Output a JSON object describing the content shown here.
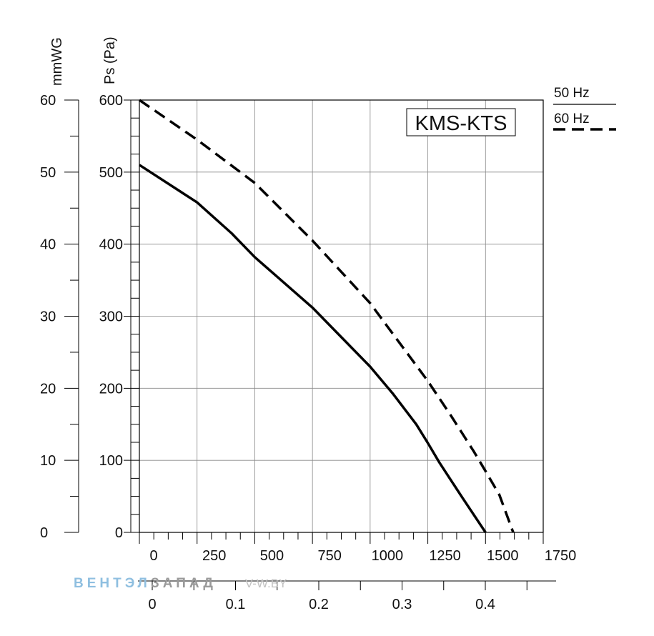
{
  "chart_data": {
    "type": "line",
    "title": "KMS-KTS",
    "y_primary": {
      "label": "Ps (Pa)",
      "ticks": [
        "0",
        "100",
        "200",
        "300",
        "400",
        "500",
        "600"
      ],
      "range": [
        0,
        600
      ]
    },
    "y_secondary": {
      "label": "mmWG",
      "ticks": [
        "0",
        "10",
        "20",
        "30",
        "40",
        "50",
        "60"
      ],
      "range": [
        0,
        60
      ]
    },
    "x_primary": {
      "label": "",
      "ticks": [
        "0",
        "250",
        "500",
        "750",
        "1000",
        "1250",
        "1500",
        "1750"
      ],
      "range": [
        0,
        1750
      ]
    },
    "x_secondary": {
      "label": "",
      "ticks": [
        "0",
        "0.1",
        "0.2",
        "0.3",
        "0.4"
      ],
      "range": [
        0,
        0.4
      ]
    },
    "grid": true,
    "legend_position": "top-right",
    "series": [
      {
        "name": "50 Hz",
        "style": "solid",
        "color": "#000000",
        "x": [
          0,
          250,
          400,
          500,
          750,
          1000,
          1100,
          1200,
          1250,
          1300,
          1400,
          1500
        ],
        "y": [
          510,
          458,
          415,
          382,
          312,
          230,
          192,
          150,
          124,
          97,
          48,
          0
        ]
      },
      {
        "name": "60 Hz",
        "style": "dashed",
        "color": "#000000",
        "x": [
          0,
          250,
          500,
          750,
          1000,
          1250,
          1350,
          1450,
          1500,
          1560,
          1620
        ],
        "y": [
          600,
          545,
          485,
          405,
          318,
          210,
          162,
          112,
          85,
          52,
          0
        ]
      }
    ]
  },
  "watermark": {
    "part1": "ВЕНТЭЛ",
    "part2": "ЗАПАД",
    "part3": "V-W.BY"
  }
}
